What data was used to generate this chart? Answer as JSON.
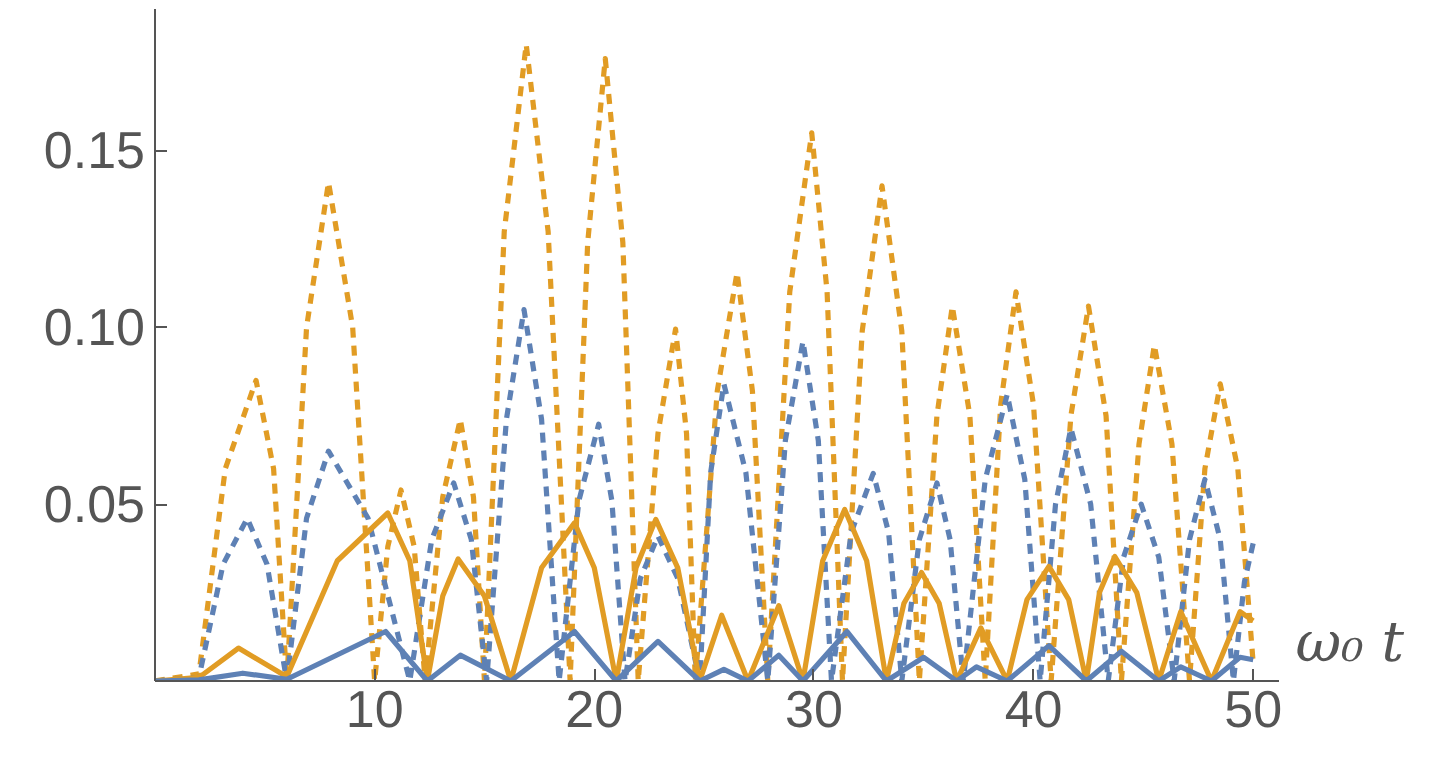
{
  "chart_data": {
    "type": "line",
    "xlabel": "ω₀ t",
    "xlim": [
      0,
      51.2
    ],
    "ylim": [
      0,
      0.19
    ],
    "xticks": [
      10,
      20,
      30,
      40,
      50
    ],
    "yticks": [
      {
        "value": 0.05,
        "label": "0.05"
      },
      {
        "value": 0.1,
        "label": "0.10"
      },
      {
        "value": 0.15,
        "label": "0.15"
      }
    ],
    "marker": "none",
    "series": [
      {
        "color": "#e19c24",
        "line_style": "dashed",
        "x": [
          0,
          2,
          3.2,
          4.6,
          5.4,
          6.0,
          6.9,
          7.9,
          9.0,
          10.0,
          10.6,
          11.2,
          11.8,
          12.3,
          13.1,
          13.9,
          14.5,
          15.0,
          15.9,
          16.9,
          17.9,
          18.9,
          19.7,
          20.5,
          21.3,
          22.0,
          22.9,
          23.7,
          24.2,
          24.6,
          25.6,
          26.5,
          27.2,
          27.9,
          28.9,
          29.9,
          30.6,
          31.3,
          32.2,
          33.1,
          34.0,
          34.8,
          35.6,
          36.3,
          37.1,
          37.8,
          38.5,
          39.2,
          40.0,
          40.8,
          41.7,
          42.5,
          43.3,
          44.0,
          44.8,
          45.5,
          46.3,
          47.1,
          47.8,
          48.5,
          49.3,
          50.0
        ],
        "values": [
          0,
          0.002,
          0.06,
          0.085,
          0.06,
          0,
          0.1,
          0.141,
          0.1,
          0,
          0.038,
          0.054,
          0.038,
          0,
          0.052,
          0.074,
          0.052,
          0,
          0.127,
          0.18,
          0.127,
          0,
          0.124,
          0.176,
          0.124,
          0,
          0.07,
          0.0995,
          0.07,
          0,
          0.082,
          0.1155,
          0.082,
          0,
          0.11,
          0.155,
          0.11,
          0,
          0.099,
          0.14,
          0.099,
          0,
          0.075,
          0.106,
          0.075,
          0,
          0.078,
          0.11,
          0.078,
          0,
          0.075,
          0.106,
          0.075,
          0,
          0.067,
          0.095,
          0.067,
          0,
          0.06,
          0.084,
          0.06,
          0.005
        ]
      },
      {
        "color": "#5e81b5",
        "line_style": "dashed",
        "x": [
          0,
          2,
          3.1,
          4.2,
          5.1,
          6.0,
          6.9,
          7.9,
          9.7,
          11.6,
          12.6,
          13.6,
          14.4,
          15.1,
          16.0,
          16.8,
          17.6,
          18.4,
          19.3,
          20.2,
          20.8,
          21.4,
          22.1,
          22.9,
          23.8,
          24.8,
          25.3,
          25.9,
          26.9,
          27.9,
          28.7,
          29.5,
          30.2,
          30.8,
          31.7,
          32.7,
          33.4,
          34.0,
          34.8,
          35.6,
          36.2,
          36.8,
          37.8,
          38.8,
          39.6,
          40.3,
          41.0,
          41.7,
          42.6,
          43.4,
          44.1,
          44.9,
          45.7,
          46.4,
          47.1,
          47.8,
          48.5,
          49.1,
          49.6,
          50.0
        ],
        "values": [
          0,
          0.001,
          0.033,
          0.046,
          0.033,
          0,
          0.046,
          0.065,
          0.046,
          0,
          0.04,
          0.056,
          0.04,
          0,
          0.074,
          0.105,
          0.074,
          0,
          0.051,
          0.0726,
          0.051,
          0,
          0.029,
          0.041,
          0.029,
          0,
          0.059,
          0.084,
          0.059,
          0,
          0.068,
          0.096,
          0.068,
          0,
          0.042,
          0.0587,
          0.042,
          0,
          0.04,
          0.056,
          0.04,
          0,
          0.057,
          0.081,
          0.057,
          0,
          0.05,
          0.0715,
          0.05,
          0,
          0.035,
          0.05,
          0.035,
          0,
          0.04,
          0.057,
          0.04,
          0,
          0.028,
          0.039
        ]
      },
      {
        "color": "#e19c24",
        "line_style": "solid",
        "x": [
          0,
          2,
          3.8,
          6.0,
          8.3,
          10.6,
          11.6,
          12.4,
          13.1,
          13.8,
          15.0,
          16.2,
          17.6,
          19.1,
          20.0,
          21.0,
          21.9,
          22.8,
          23.8,
          24.8,
          25.8,
          27.0,
          28.4,
          29.5,
          30.4,
          31.4,
          32.4,
          33.3,
          34.1,
          34.9,
          35.7,
          36.5,
          37.6,
          38.8,
          39.7,
          40.7,
          41.6,
          42.4,
          43.0,
          43.7,
          44.7,
          45.7,
          46.7,
          48.1,
          49.4,
          50.0
        ],
        "values": [
          0,
          0.001,
          0.0093,
          0.0012,
          0.034,
          0.0475,
          0.034,
          0,
          0.024,
          0.0345,
          0.024,
          0,
          0.032,
          0.0447,
          0.032,
          0,
          0.032,
          0.0457,
          0.032,
          0,
          0.0186,
          0,
          0.0213,
          0,
          0.034,
          0.0485,
          0.034,
          0,
          0.022,
          0.0307,
          0.022,
          0,
          0.015,
          0,
          0.023,
          0.0324,
          0.023,
          0,
          0.025,
          0.0352,
          0.025,
          0,
          0.0196,
          0,
          0.0196,
          0.017
        ]
      },
      {
        "color": "#5e81b5",
        "line_style": "solid",
        "x": [
          0,
          2,
          4.0,
          6.0,
          10.5,
          12.4,
          13.9,
          16.2,
          19.1,
          21.0,
          22.9,
          24.8,
          25.9,
          27.0,
          28.4,
          29.5,
          31.5,
          33.3,
          35.0,
          36.5,
          37.4,
          38.8,
          40.7,
          42.4,
          44.0,
          45.7,
          46.7,
          48.1,
          49.4,
          50.0
        ],
        "values": [
          0,
          0.0003,
          0.0022,
          0.0005,
          0.014,
          0,
          0.0073,
          0,
          0.014,
          0,
          0.0112,
          0,
          0.0033,
          0,
          0.0073,
          0,
          0.014,
          0,
          0.0067,
          0,
          0.004,
          0,
          0.01,
          0,
          0.0084,
          0,
          0.004,
          0,
          0.0067,
          0.006
        ]
      }
    ]
  }
}
